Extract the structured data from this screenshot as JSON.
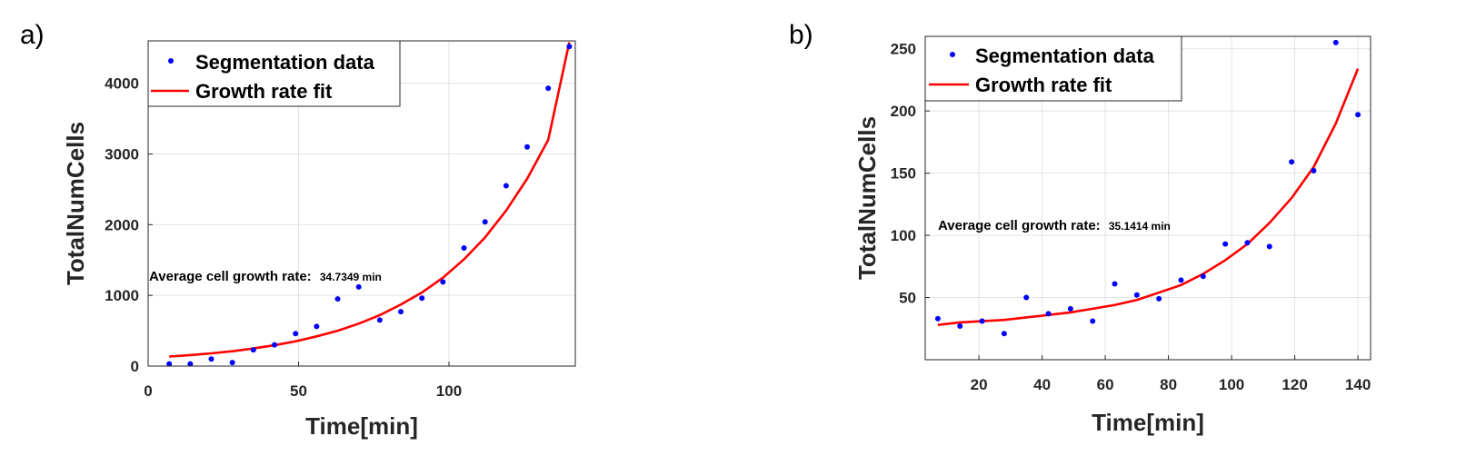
{
  "chart_data": [
    {
      "type": "scatter",
      "panel_label": "a)",
      "xlabel": "Time[min]",
      "ylabel": "TotalNumCells",
      "xlim": [
        0,
        142
      ],
      "ylim": [
        0,
        4600
      ],
      "xticks": [
        0,
        50,
        100
      ],
      "yticks": [
        0,
        1000,
        2000,
        3000,
        4000
      ],
      "grid": true,
      "legend_position": "top-left",
      "annotation": {
        "text": "Average cell growth rate:",
        "value": "34.7349 min"
      },
      "series": [
        {
          "name": "Segmentation data",
          "kind": "markers",
          "color": "#0000ff",
          "x": [
            7,
            14,
            21,
            28,
            35,
            42,
            49,
            56,
            63,
            70,
            77,
            84,
            91,
            98,
            105,
            112,
            119,
            126,
            133,
            140
          ],
          "y": [
            30,
            30,
            100,
            50,
            230,
            300,
            460,
            560,
            950,
            1120,
            650,
            770,
            960,
            1190,
            1670,
            2040,
            2550,
            3100,
            3930,
            4520
          ]
        },
        {
          "name": "Growth rate fit",
          "kind": "line",
          "color": "#ff0000",
          "x": [
            7,
            14,
            21,
            28,
            35,
            42,
            49,
            56,
            63,
            70,
            77,
            84,
            91,
            98,
            105,
            112,
            119,
            126,
            133,
            140
          ],
          "y": [
            135,
            155,
            180,
            210,
            250,
            295,
            350,
            420,
            500,
            600,
            720,
            870,
            1040,
            1250,
            1510,
            1820,
            2200,
            2650,
            3200,
            4580
          ]
        }
      ]
    },
    {
      "type": "scatter",
      "panel_label": "b)",
      "xlabel": "Time[min]",
      "ylabel": "TotalNumCells",
      "xlim": [
        3,
        144
      ],
      "ylim": [
        0,
        260
      ],
      "xticks": [
        20,
        40,
        60,
        80,
        100,
        120,
        140
      ],
      "yticks": [
        50,
        100,
        150,
        200,
        250
      ],
      "grid": true,
      "legend_position": "top-left",
      "annotation": {
        "text": "Average cell growth rate:",
        "value": "35.1414 min"
      },
      "series": [
        {
          "name": "Segmentation data",
          "kind": "markers",
          "color": "#0000ff",
          "x": [
            7,
            14,
            21,
            28,
            35,
            42,
            49,
            56,
            63,
            70,
            77,
            84,
            91,
            98,
            105,
            112,
            119,
            126,
            133,
            140
          ],
          "y": [
            33,
            27,
            31,
            21,
            50,
            37,
            41,
            31,
            61,
            52,
            49,
            64,
            67,
            93,
            94,
            91,
            159,
            152,
            255,
            197
          ]
        },
        {
          "name": "Growth rate fit",
          "kind": "line",
          "color": "#ff0000",
          "x": [
            7,
            14,
            21,
            28,
            35,
            42,
            49,
            56,
            63,
            70,
            77,
            84,
            91,
            98,
            105,
            112,
            119,
            126,
            133,
            140
          ],
          "y": [
            28,
            30,
            31,
            32,
            34,
            36,
            38,
            41,
            44,
            48,
            54,
            60,
            69,
            80,
            93,
            110,
            130,
            155,
            190,
            234
          ]
        }
      ]
    }
  ]
}
